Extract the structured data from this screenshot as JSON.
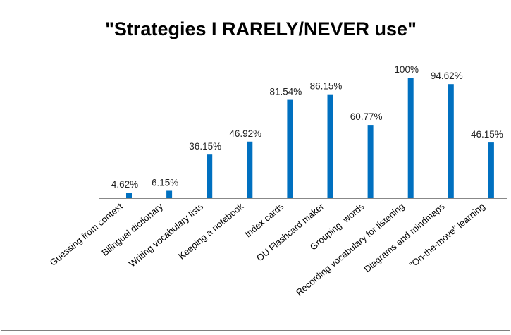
{
  "chart_data": {
    "type": "bar",
    "title": "\"Strategies I RARELY/NEVER use\"",
    "categories": [
      "Guessing from context",
      "Bilingual dictionary",
      "Writing vocabulary lists",
      "Keeping a notebook",
      "Index cards",
      "OU Flashcard maker",
      "Grouping  words",
      "Recording vocabulary for listening",
      "Diagrams and mindmaps",
      "\"On-the-move\" learning"
    ],
    "values": [
      4.62,
      6.15,
      36.15,
      46.92,
      81.54,
      86.15,
      60.77,
      100,
      94.62,
      46.15
    ],
    "value_labels": [
      "4.62%",
      "6.15%",
      "36.15%",
      "46.92%",
      "81.54%",
      "86.15%",
      "60.77%",
      "100%",
      "94.62%",
      "46.15%"
    ],
    "color": "#0070c0"
  }
}
